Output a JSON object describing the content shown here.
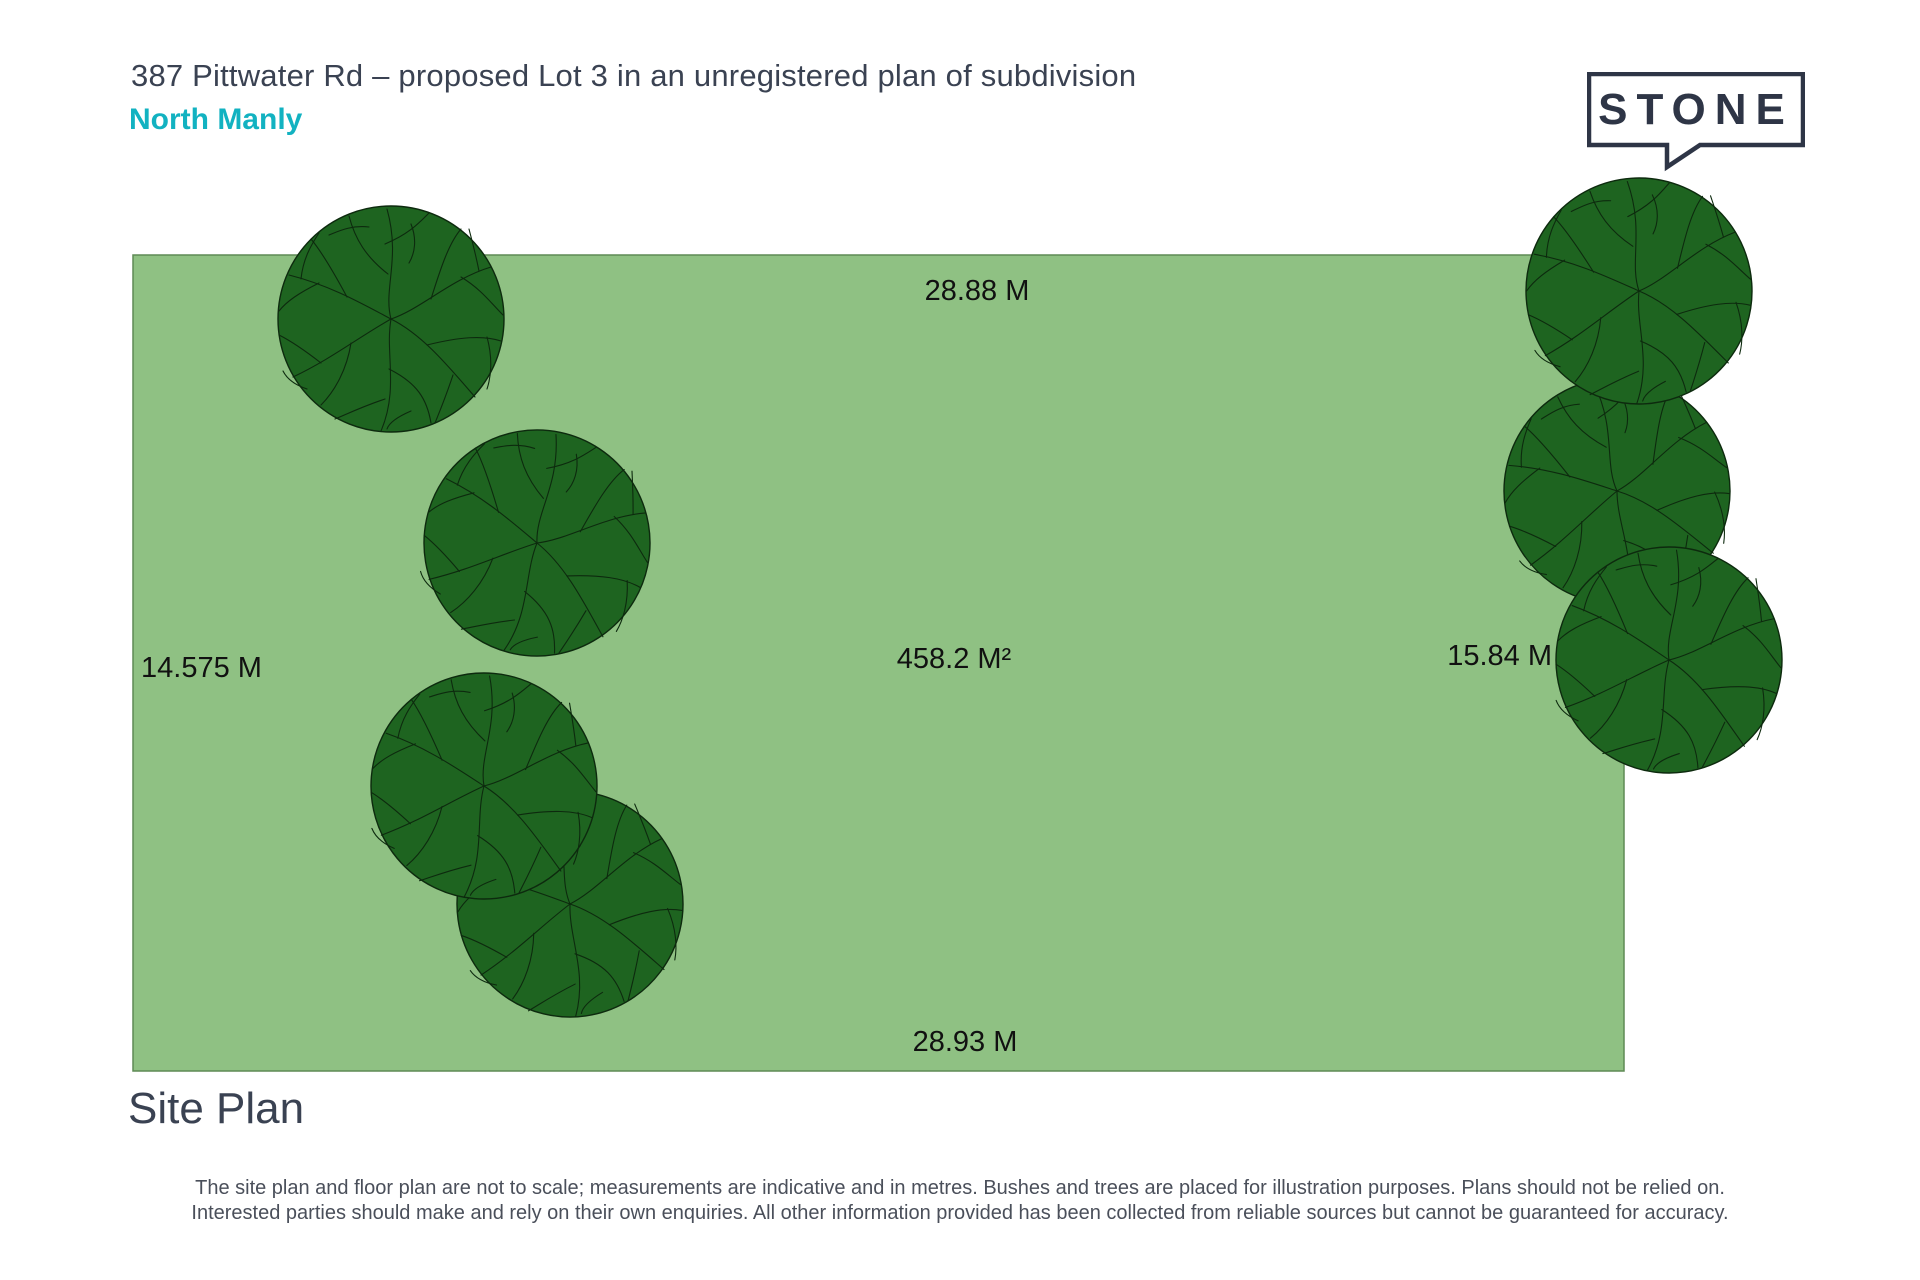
{
  "header": {
    "title": "387 Pittwater Rd – proposed Lot 3 in an unregistered plan of subdivision",
    "suburb": "North Manly"
  },
  "logo": {
    "text": "STONE",
    "color": "#2e3546"
  },
  "site_plan": {
    "label": "Site Plan",
    "lot_color": "#8fc183",
    "lot_border_color": "#5e8a55",
    "tree_fill_color": "#1e6420",
    "tree_line_color": "#0d2a0e",
    "dimensions": {
      "top": "28.88 M",
      "bottom": "28.93 M",
      "left": "14.575 M",
      "right": "15.84 M",
      "area": "458.2 M²"
    },
    "tree_icon": "tree-canopy-icon",
    "tree_count": 7
  },
  "disclaimer": {
    "line1": "The site plan and floor plan are not to scale; measurements are indicative and in metres. Bushes and trees are placed for illustration purposes. Plans should not be relied on.",
    "line2": "Interested parties should make and rely on their own enquiries.  All other information provided has been collected from reliable sources but cannot be guaranteed for accuracy."
  }
}
